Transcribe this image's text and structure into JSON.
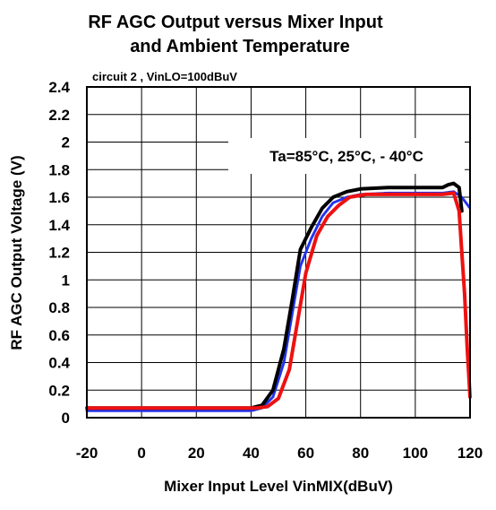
{
  "chart_data": {
    "type": "line",
    "title_line1": "RF AGC Output versus Mixer Input",
    "title_line2": "and Ambient Temperature",
    "subtitle": "circuit 2 , VinLO=100dBuV",
    "xlabel": "Mixer Input Level VinMIX(dBuV)",
    "ylabel": "RF AGC Output Voltage (V)",
    "xlim": [
      -20,
      120
    ],
    "ylim": [
      0,
      2.4
    ],
    "x_ticks": [
      -20,
      0,
      20,
      40,
      60,
      80,
      100,
      120
    ],
    "y_ticks": [
      0,
      0.2,
      0.4,
      0.6,
      0.8,
      1,
      1.2,
      1.4,
      1.6,
      1.8,
      2,
      2.2,
      2.4
    ],
    "grid": true,
    "annotation": "Ta=85°C, 25°C, - 40°C",
    "series": [
      {
        "color": "#2233ee",
        "style": "dotted",
        "points": [
          [
            -20,
            0.05
          ],
          [
            40,
            0.05
          ],
          [
            44,
            0.07
          ],
          [
            48,
            0.15
          ],
          [
            52,
            0.4
          ],
          [
            55,
            0.75
          ],
          [
            58,
            1.1
          ],
          [
            62,
            1.3
          ],
          [
            66,
            1.46
          ],
          [
            70,
            1.56
          ],
          [
            75,
            1.6
          ],
          [
            80,
            1.62
          ],
          [
            90,
            1.63
          ],
          [
            110,
            1.63
          ],
          [
            114,
            1.64
          ],
          [
            117,
            1.6
          ],
          [
            120,
            1.52
          ]
        ]
      },
      {
        "color": "#000000",
        "style": "solid",
        "points": [
          [
            -20,
            0.07
          ],
          [
            40,
            0.07
          ],
          [
            44,
            0.09
          ],
          [
            48,
            0.2
          ],
          [
            52,
            0.5
          ],
          [
            55,
            0.85
          ],
          [
            58,
            1.22
          ],
          [
            62,
            1.38
          ],
          [
            66,
            1.52
          ],
          [
            70,
            1.6
          ],
          [
            75,
            1.64
          ],
          [
            80,
            1.66
          ],
          [
            90,
            1.67
          ],
          [
            110,
            1.67
          ],
          [
            112,
            1.69
          ],
          [
            114,
            1.7
          ],
          [
            116,
            1.67
          ],
          [
            117,
            1.5
          ]
        ]
      },
      {
        "color": "#ee1111",
        "style": "solid",
        "points": [
          [
            -20,
            0.07
          ],
          [
            42,
            0.07
          ],
          [
            46,
            0.08
          ],
          [
            50,
            0.14
          ],
          [
            54,
            0.35
          ],
          [
            57,
            0.7
          ],
          [
            60,
            1.05
          ],
          [
            64,
            1.32
          ],
          [
            68,
            1.46
          ],
          [
            72,
            1.54
          ],
          [
            76,
            1.6
          ],
          [
            82,
            1.62
          ],
          [
            90,
            1.62
          ],
          [
            110,
            1.62
          ],
          [
            114,
            1.63
          ],
          [
            116,
            1.5
          ],
          [
            117,
            1.2
          ],
          [
            118,
            0.9
          ],
          [
            119,
            0.5
          ],
          [
            120,
            0.15
          ]
        ]
      }
    ]
  }
}
